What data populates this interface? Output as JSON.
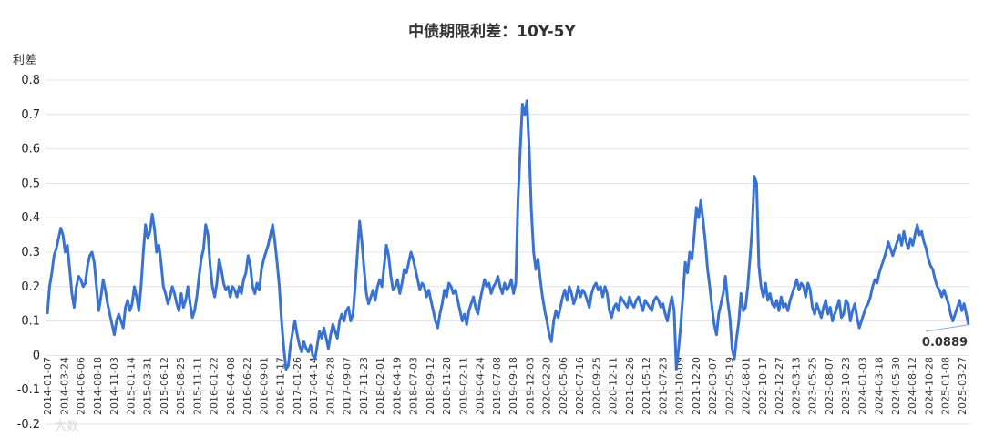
{
  "chart_data": {
    "type": "line",
    "title": "中债期限利差：10Y-5Y",
    "ylabel": "利差",
    "xlabel": "",
    "ylim": [
      -0.2,
      0.8
    ],
    "yticks": [
      0.8,
      0.7,
      0.6,
      0.5,
      0.4,
      0.3,
      0.2,
      0.1,
      0,
      -0.1,
      -0.2
    ],
    "ytick_labels": [
      "0.8",
      "0.7",
      "0.6",
      "0.5",
      "0.4",
      "0.3",
      "0.2",
      "0.1",
      "0",
      "-0.1",
      "-0.2"
    ],
    "grid": true,
    "legend": "none",
    "line_color": "#3a72d1",
    "x_tick_labels": [
      "2014-01-07",
      "2014-03-24",
      "2014-06-06",
      "2014-08-18",
      "2014-11-03",
      "2015-01-14",
      "2015-03-31",
      "2015-06-12",
      "2015-08-25",
      "2015-11-11",
      "2016-01-22",
      "2016-04-08",
      "2016-06-22",
      "2016-09-01",
      "2016-11-17",
      "2017-01-26",
      "2017-04-14",
      "2017-06-28",
      "2017-09-07",
      "2017-11-23",
      "2018-02-01",
      "2018-04-19",
      "2018-07-03",
      "2018-09-12",
      "2018-11-28",
      "2019-02-11",
      "2019-04-24",
      "2019-07-08",
      "2019-09-18",
      "2019-12-03",
      "2020-02-20",
      "2020-05-06",
      "2020-07-16",
      "2020-09-25",
      "2020-12-11",
      "2021-02-26",
      "2021-05-12",
      "2021-07-23",
      "2021-10-09",
      "2021-12-20",
      "2022-03-07",
      "2022-05-19",
      "2022-08-01",
      "2022-10-17",
      "2022-12-27",
      "2023-03-13",
      "2023-05-25",
      "2023-08-07",
      "2023-10-23",
      "2024-01-03",
      "2024-03-18",
      "2024-05-30",
      "2024-08-12",
      "2024-10-28",
      "2025-01-08",
      "2025-03-27"
    ],
    "series": [
      {
        "values": [
          0.12,
          0.2,
          0.24,
          0.29,
          0.31,
          0.34,
          0.37,
          0.35,
          0.3,
          0.32,
          0.25,
          0.18,
          0.14,
          0.2,
          0.23,
          0.22,
          0.2,
          0.21,
          0.26,
          0.29,
          0.3,
          0.27,
          0.2,
          0.13,
          0.17,
          0.22,
          0.19,
          0.15,
          0.12,
          0.09,
          0.06,
          0.1,
          0.12,
          0.1,
          0.08,
          0.14,
          0.16,
          0.13,
          0.15,
          0.2,
          0.17,
          0.13,
          0.2,
          0.3,
          0.38,
          0.34,
          0.36,
          0.41,
          0.37,
          0.3,
          0.32,
          0.27,
          0.2,
          0.18,
          0.15,
          0.17,
          0.2,
          0.18,
          0.15,
          0.13,
          0.18,
          0.14,
          0.16,
          0.2,
          0.15,
          0.11,
          0.13,
          0.17,
          0.23,
          0.28,
          0.31,
          0.38,
          0.35,
          0.26,
          0.2,
          0.17,
          0.21,
          0.28,
          0.25,
          0.21,
          0.19,
          0.2,
          0.17,
          0.2,
          0.19,
          0.17,
          0.2,
          0.18,
          0.22,
          0.24,
          0.29,
          0.26,
          0.2,
          0.18,
          0.21,
          0.19,
          0.25,
          0.28,
          0.3,
          0.32,
          0.35,
          0.38,
          0.33,
          0.27,
          0.2,
          0.1,
          0.02,
          -0.04,
          -0.03,
          0.03,
          0.07,
          0.1,
          0.06,
          0.03,
          0.01,
          0.04,
          0.02,
          0.01,
          0.03,
          0.0,
          -0.01,
          0.03,
          0.07,
          0.05,
          0.08,
          0.05,
          0.02,
          0.06,
          0.09,
          0.07,
          0.05,
          0.1,
          0.12,
          0.1,
          0.13,
          0.14,
          0.1,
          0.12,
          0.2,
          0.3,
          0.39,
          0.33,
          0.25,
          0.18,
          0.15,
          0.17,
          0.19,
          0.16,
          0.2,
          0.22,
          0.2,
          0.26,
          0.32,
          0.29,
          0.23,
          0.19,
          0.2,
          0.22,
          0.18,
          0.21,
          0.25,
          0.24,
          0.27,
          0.3,
          0.28,
          0.25,
          0.22,
          0.19,
          0.21,
          0.2,
          0.17,
          0.19,
          0.16,
          0.13,
          0.1,
          0.08,
          0.12,
          0.15,
          0.19,
          0.17,
          0.21,
          0.2,
          0.18,
          0.19,
          0.16,
          0.13,
          0.1,
          0.12,
          0.09,
          0.13,
          0.15,
          0.17,
          0.14,
          0.12,
          0.16,
          0.19,
          0.22,
          0.2,
          0.21,
          0.18,
          0.2,
          0.21,
          0.23,
          0.2,
          0.18,
          0.21,
          0.19,
          0.2,
          0.22,
          0.18,
          0.21,
          0.45,
          0.6,
          0.73,
          0.7,
          0.74,
          0.6,
          0.42,
          0.3,
          0.25,
          0.28,
          0.22,
          0.17,
          0.13,
          0.1,
          0.06,
          0.04,
          0.1,
          0.13,
          0.11,
          0.14,
          0.17,
          0.19,
          0.16,
          0.2,
          0.18,
          0.15,
          0.17,
          0.2,
          0.17,
          0.19,
          0.18,
          0.16,
          0.14,
          0.18,
          0.2,
          0.21,
          0.19,
          0.2,
          0.17,
          0.2,
          0.18,
          0.13,
          0.11,
          0.14,
          0.15,
          0.13,
          0.17,
          0.16,
          0.15,
          0.14,
          0.17,
          0.15,
          0.14,
          0.16,
          0.17,
          0.15,
          0.13,
          0.16,
          0.15,
          0.14,
          0.13,
          0.16,
          0.17,
          0.16,
          0.14,
          0.15,
          0.12,
          0.1,
          0.14,
          0.17,
          0.13,
          -0.04,
          0.02,
          0.09,
          0.18,
          0.27,
          0.24,
          0.3,
          0.28,
          0.35,
          0.43,
          0.4,
          0.45,
          0.39,
          0.33,
          0.25,
          0.2,
          0.14,
          0.09,
          0.06,
          0.12,
          0.15,
          0.18,
          0.23,
          0.16,
          0.11,
          0.02,
          -0.01,
          0.05,
          0.1,
          0.18,
          0.13,
          0.14,
          0.2,
          0.28,
          0.37,
          0.52,
          0.5,
          0.26,
          0.2,
          0.17,
          0.21,
          0.16,
          0.18,
          0.15,
          0.14,
          0.16,
          0.13,
          0.17,
          0.14,
          0.15,
          0.13,
          0.16,
          0.18,
          0.2,
          0.22,
          0.19,
          0.21,
          0.2,
          0.17,
          0.21,
          0.19,
          0.14,
          0.12,
          0.15,
          0.13,
          0.11,
          0.14,
          0.16,
          0.12,
          0.14,
          0.1,
          0.12,
          0.14,
          0.16,
          0.11,
          0.12,
          0.16,
          0.15,
          0.1,
          0.13,
          0.15,
          0.11,
          0.08,
          0.1,
          0.12,
          0.14,
          0.15,
          0.17,
          0.2,
          0.22,
          0.21,
          0.24,
          0.26,
          0.28,
          0.3,
          0.33,
          0.31,
          0.29,
          0.31,
          0.33,
          0.35,
          0.32,
          0.36,
          0.33,
          0.31,
          0.34,
          0.32,
          0.35,
          0.38,
          0.35,
          0.36,
          0.33,
          0.31,
          0.28,
          0.26,
          0.25,
          0.22,
          0.2,
          0.19,
          0.17,
          0.19,
          0.17,
          0.15,
          0.12,
          0.1,
          0.12,
          0.14,
          0.16,
          0.13,
          0.15,
          0.12,
          0.0889
        ]
      }
    ],
    "last_value_label": "0.0889"
  },
  "watermark": "大数"
}
